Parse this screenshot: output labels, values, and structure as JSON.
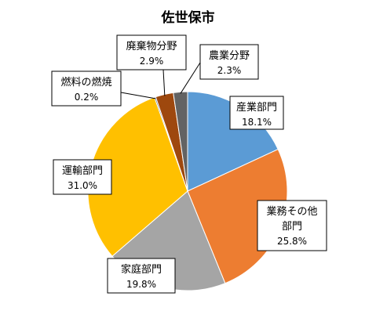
{
  "chart_data": {
    "type": "pie",
    "title": "佐世保市",
    "start": "12 o'clock, clockwise",
    "slices": [
      {
        "name": "産業部門",
        "value": 18.1,
        "label": "18.1%",
        "color": "#5b9bd5"
      },
      {
        "name": "業務その他部門",
        "value": 25.8,
        "label": "25.8%",
        "color": "#ed7d31"
      },
      {
        "name": "家庭部門",
        "value": 19.8,
        "label": "19.8%",
        "color": "#a5a5a5"
      },
      {
        "name": "運輸部門",
        "value": 31.0,
        "label": "31.0%",
        "color": "#ffc000"
      },
      {
        "name": "燃料の燃焼",
        "value": 0.2,
        "label": "0.2%",
        "color": "#264478"
      },
      {
        "name": "廃棄物分野",
        "value": 2.9,
        "label": "2.9%",
        "color": "#9e480e"
      },
      {
        "name": "農業分野",
        "value": 2.3,
        "label": "2.3%",
        "color": "#636363"
      }
    ]
  }
}
